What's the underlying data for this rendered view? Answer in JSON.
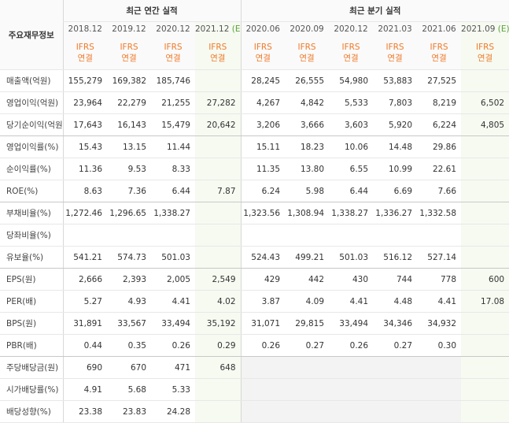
{
  "header": {
    "title": "주요재무정보",
    "annual": "최근 연간 실적",
    "quarterly": "최근 분기 실적"
  },
  "columns": [
    {
      "period": "2018.12",
      "standard": "IFRS",
      "scope": "연결"
    },
    {
      "period": "2019.12",
      "standard": "IFRS",
      "scope": "연결"
    },
    {
      "period": "2020.12",
      "standard": "IFRS",
      "scope": "연결"
    },
    {
      "period": "2021.12",
      "estimate": "(E)",
      "standard": "IFRS",
      "scope": "연결"
    },
    {
      "period": "2020.06",
      "standard": "IFRS",
      "scope": "연결"
    },
    {
      "period": "2020.09",
      "standard": "IFRS",
      "scope": "연결"
    },
    {
      "period": "2020.12",
      "standard": "IFRS",
      "scope": "연결"
    },
    {
      "period": "2021.03",
      "standard": "IFRS",
      "scope": "연결"
    },
    {
      "period": "2021.06",
      "standard": "IFRS",
      "scope": "연결"
    },
    {
      "period": "2021.09",
      "estimate": "(E)",
      "standard": "IFRS",
      "scope": "연결"
    }
  ],
  "table": {
    "rows": [
      {
        "label": "매출액(억원)",
        "values": [
          "155,279",
          "169,382",
          "185,746",
          null,
          "28,245",
          "26,555",
          "54,980",
          "53,883",
          "27,525",
          null
        ]
      },
      {
        "label": "영업이익(억원)",
        "values": [
          "23,964",
          "22,279",
          "21,255",
          "27,282",
          "4,267",
          "4,842",
          "5,533",
          "7,803",
          "8,219",
          "6,502"
        ]
      },
      {
        "label": "당기순이익(억원)",
        "values": [
          "17,643",
          "16,143",
          "15,479",
          "20,642",
          "3,206",
          "3,666",
          "3,603",
          "5,920",
          "6,224",
          "4,805"
        ]
      },
      {
        "label": "영업이익률(%)",
        "values": [
          "15.43",
          "13.15",
          "11.44",
          null,
          "15.11",
          "18.23",
          "10.06",
          "14.48",
          "29.86",
          null
        ]
      },
      {
        "label": "순이익률(%)",
        "values": [
          "11.36",
          "9.53",
          "8.33",
          null,
          "11.35",
          "13.80",
          "6.55",
          "10.99",
          "22.61",
          null
        ]
      },
      {
        "label": "ROE(%)",
        "values": [
          "8.63",
          "7.36",
          "6.44",
          "7.87",
          "6.24",
          "5.98",
          "6.44",
          "6.69",
          "7.66",
          null
        ]
      },
      {
        "label": "부채비율(%)",
        "values": [
          "1,272.46",
          "1,296.65",
          "1,338.27",
          null,
          "1,323.56",
          "1,308.94",
          "1,338.27",
          "1,336.27",
          "1,332.58",
          null
        ]
      },
      {
        "label": "당좌비율(%)",
        "values": [
          null,
          null,
          null,
          null,
          null,
          null,
          null,
          null,
          null,
          null
        ]
      },
      {
        "label": "유보율(%)",
        "values": [
          "541.21",
          "574.73",
          "501.03",
          null,
          "524.43",
          "499.21",
          "501.03",
          "516.12",
          "527.14",
          null
        ]
      },
      {
        "label": "EPS(원)",
        "values": [
          "2,666",
          "2,393",
          "2,005",
          "2,549",
          "429",
          "442",
          "430",
          "744",
          "778",
          "600"
        ]
      },
      {
        "label": "PER(배)",
        "values": [
          "5.27",
          "4.93",
          "4.41",
          "4.02",
          "3.87",
          "4.09",
          "4.41",
          "4.48",
          "4.41",
          "17.08"
        ]
      },
      {
        "label": "BPS(원)",
        "values": [
          "31,891",
          "33,567",
          "33,494",
          "35,192",
          "31,071",
          "29,815",
          "33,494",
          "34,346",
          "34,932",
          null
        ]
      },
      {
        "label": "PBR(배)",
        "values": [
          "0.44",
          "0.35",
          "0.26",
          "0.29",
          "0.26",
          "0.27",
          "0.26",
          "0.27",
          "0.30",
          null
        ]
      },
      {
        "label": "주당배당금(원)",
        "values": [
          "690",
          "670",
          "471",
          "648",
          null,
          null,
          null,
          null,
          null,
          null
        ]
      },
      {
        "label": "시가배당률(%)",
        "values": [
          "4.91",
          "5.68",
          "5.33",
          null,
          null,
          null,
          null,
          null,
          null,
          null
        ]
      },
      {
        "label": "배당성향(%)",
        "values": [
          "23.38",
          "23.83",
          "24.28",
          null,
          null,
          null,
          null,
          null,
          null,
          null
        ]
      }
    ]
  }
}
